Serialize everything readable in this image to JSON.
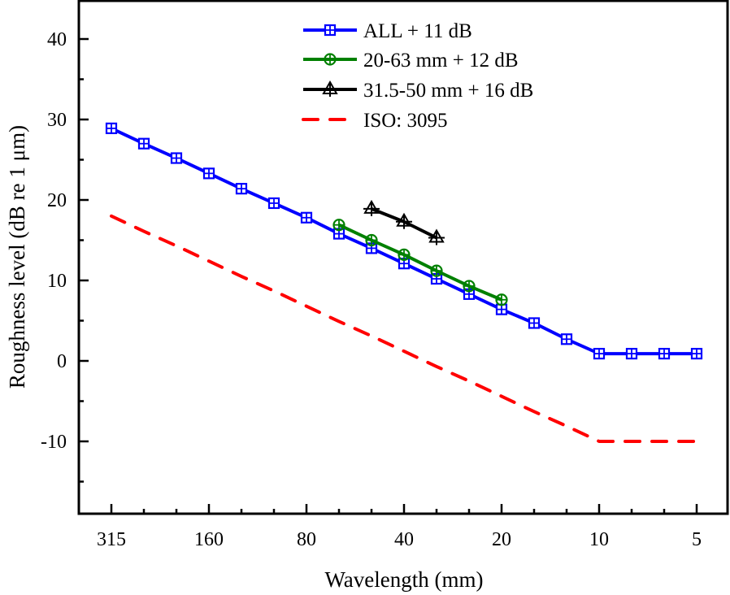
{
  "chart_data": {
    "type": "line",
    "title": "",
    "xlabel": "Wavelength (mm)",
    "ylabel": "Roughness level (dB re 1 μm)",
    "x_scale": "one-third octave bands (categorical, descending wavelength)",
    "categories": [
      "315",
      "250",
      "200",
      "160",
      "125",
      "100",
      "80",
      "63",
      "50",
      "40",
      "31.5",
      "25",
      "20",
      "16",
      "12.5",
      "10",
      "8",
      "6.3",
      "5"
    ],
    "xtick_labels": [
      "315",
      "160",
      "80",
      "40",
      "20",
      "10",
      "5"
    ],
    "ylim": [
      -19,
      45
    ],
    "yticks": [
      -10,
      0,
      10,
      20,
      30,
      40
    ],
    "ytick_labels": [
      "-10",
      "0",
      "10",
      "20",
      "30",
      "40"
    ],
    "grid": false,
    "legend_position": "top-center",
    "series": [
      {
        "name": "ALL + 11 dB",
        "color": "#0000ff",
        "marker": "square-plus",
        "line_style": "solid",
        "categories": [
          "315",
          "250",
          "200",
          "160",
          "125",
          "100",
          "80",
          "63",
          "50",
          "40",
          "31.5",
          "25",
          "20",
          "16",
          "12.5",
          "10",
          "8",
          "6.3",
          "5"
        ],
        "values": [
          28.9,
          27.0,
          25.2,
          23.3,
          21.4,
          19.6,
          17.8,
          15.8,
          14.0,
          12.1,
          10.2,
          8.3,
          6.4,
          4.7,
          2.7,
          0.9,
          0.9,
          0.9,
          0.9
        ]
      },
      {
        "name": "20-63 mm + 12 dB",
        "color": "#008000",
        "marker": "circle-plus",
        "line_style": "solid",
        "categories": [
          "63",
          "50",
          "40",
          "31.5",
          "25",
          "20"
        ],
        "values": [
          16.9,
          15.0,
          13.2,
          11.2,
          9.3,
          7.6
        ]
      },
      {
        "name": "31.5-50 mm + 16 dB",
        "color": "#000000",
        "marker": "triangle-plus",
        "line_style": "solid",
        "categories": [
          "50",
          "40",
          "31.5"
        ],
        "values": [
          18.9,
          17.3,
          15.3
        ]
      },
      {
        "name": "ISO: 3095",
        "color": "#ff0000",
        "marker": "none",
        "line_style": "dashed",
        "categories": [
          "315",
          "250",
          "200",
          "160",
          "125",
          "100",
          "80",
          "63",
          "50",
          "40",
          "31.5",
          "25",
          "20",
          "16",
          "12.5",
          "10",
          "8",
          "6.3",
          "5"
        ],
        "values": [
          18.0,
          16.1,
          14.3,
          12.4,
          10.5,
          8.7,
          6.8,
          4.9,
          3.1,
          1.2,
          -0.7,
          -2.5,
          -4.4,
          -6.3,
          -8.1,
          -10.0,
          -10.0,
          -10.0,
          -10.0
        ]
      }
    ]
  }
}
